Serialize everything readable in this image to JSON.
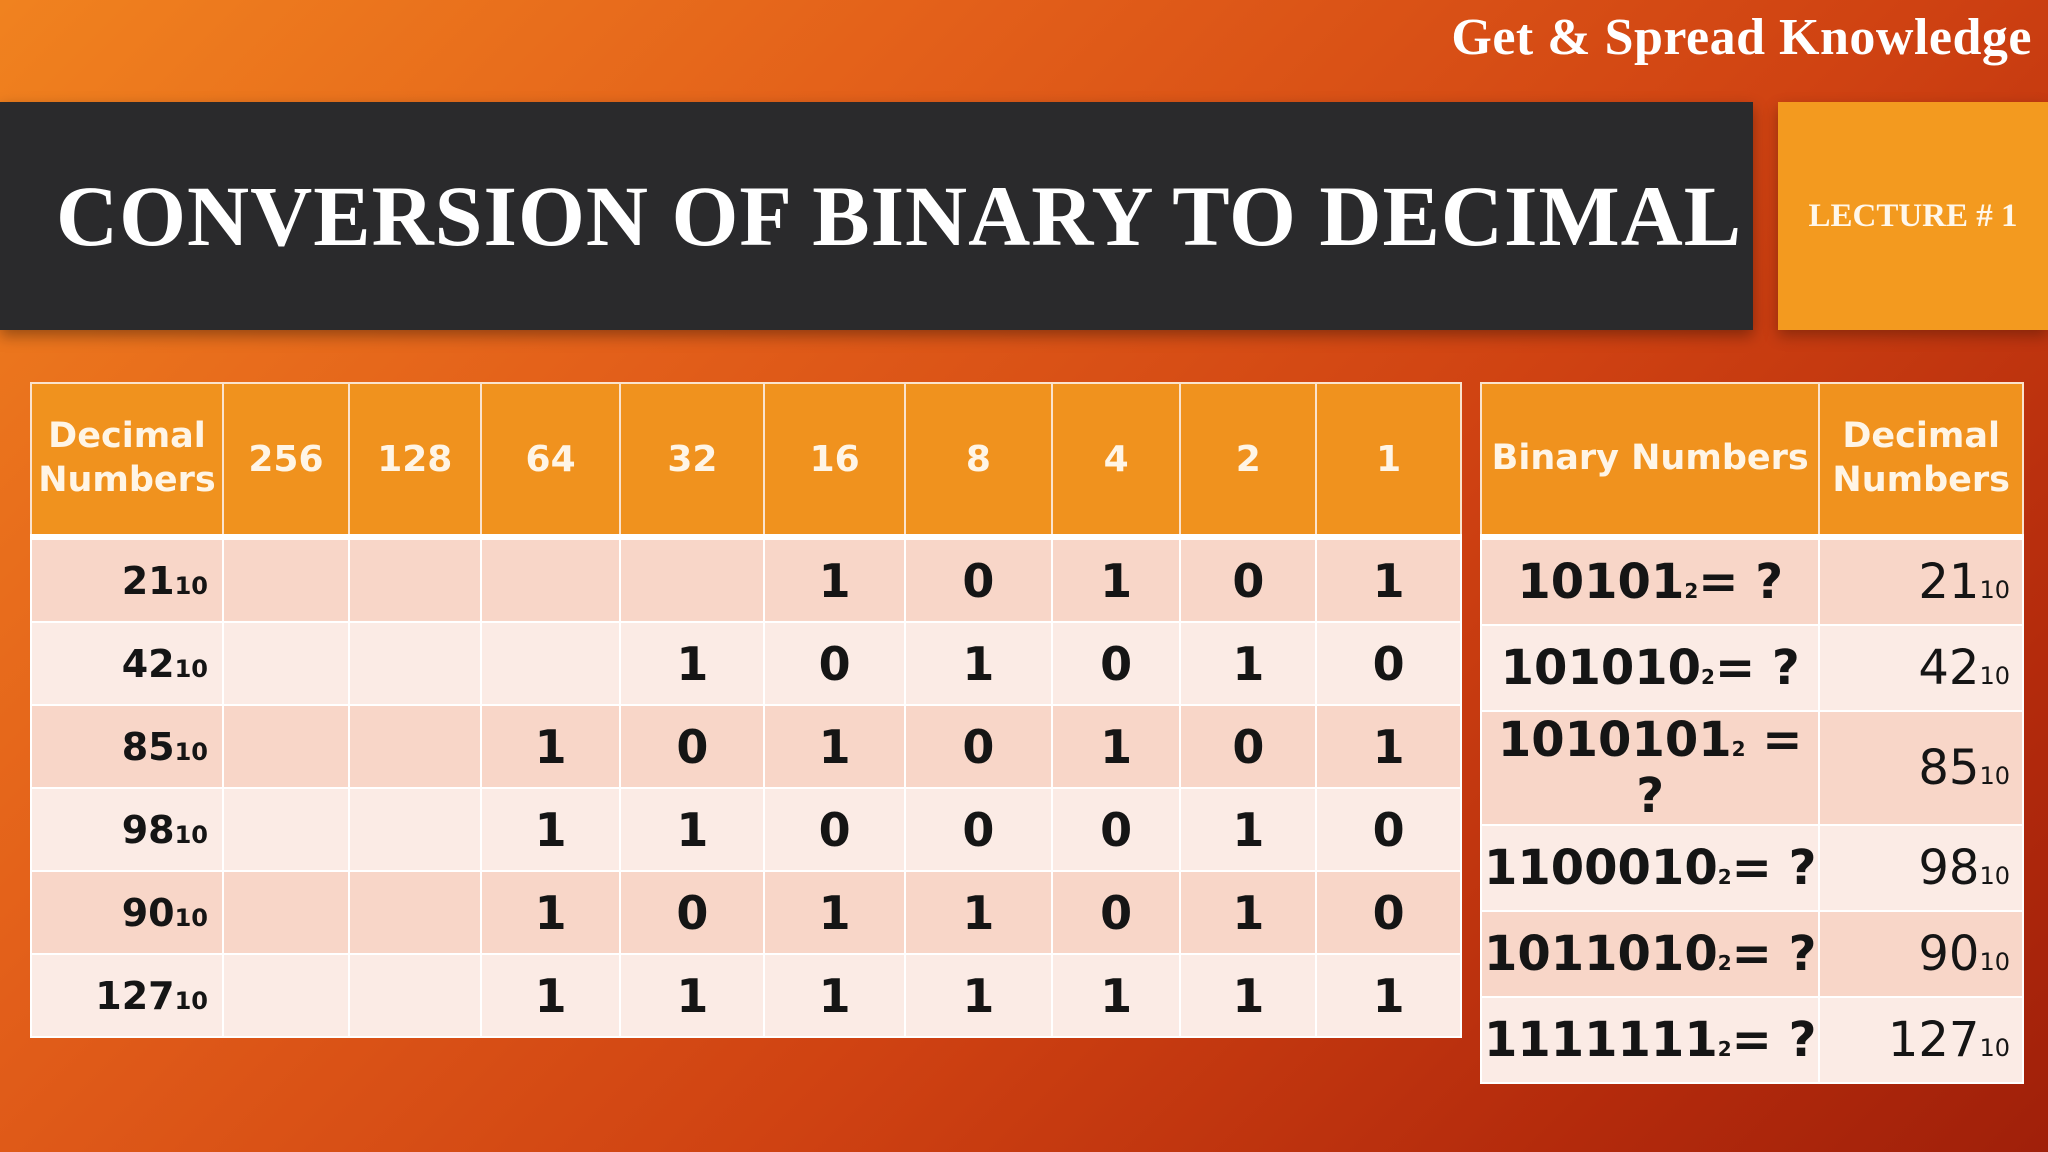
{
  "tagline": "Get & Spread Knowledge",
  "title": "CONVERSION OF BINARY TO DECIMAL",
  "lecture": "LECTURE # 1",
  "place_table": {
    "header_first": "Decimal Numbers",
    "place_values": [
      "256",
      "128",
      "64",
      "32",
      "16",
      "8",
      "4",
      "2",
      "1"
    ],
    "rows": [
      {
        "decimal": "21",
        "base": "10",
        "bits": [
          "",
          "",
          "",
          "",
          "1",
          "0",
          "1",
          "0",
          "1"
        ]
      },
      {
        "decimal": "42",
        "base": "10",
        "bits": [
          "",
          "",
          "",
          "1",
          "0",
          "1",
          "0",
          "1",
          "0"
        ]
      },
      {
        "decimal": "85",
        "base": "10",
        "bits": [
          "",
          "",
          "1",
          "0",
          "1",
          "0",
          "1",
          "0",
          "1"
        ]
      },
      {
        "decimal": "98",
        "base": "10",
        "bits": [
          "",
          "",
          "1",
          "1",
          "0",
          "0",
          "0",
          "1",
          "0"
        ]
      },
      {
        "decimal": "90",
        "base": "10",
        "bits": [
          "",
          "",
          "1",
          "0",
          "1",
          "1",
          "0",
          "1",
          "0"
        ]
      },
      {
        "decimal": "127",
        "base": "10",
        "bits": [
          "",
          "",
          "1",
          "1",
          "1",
          "1",
          "1",
          "1",
          "1"
        ]
      }
    ]
  },
  "answer_table": {
    "header_binary": "Binary Numbers",
    "header_decimal": "Decimal Numbers",
    "rows": [
      {
        "binary": "10101",
        "base": "2",
        "suffix": "= ?",
        "decimal": "21",
        "dec_base": "10"
      },
      {
        "binary": "101010",
        "base": "2",
        "suffix": "= ?",
        "decimal": "42",
        "dec_base": "10"
      },
      {
        "binary": "1010101",
        "base": "2",
        "suffix": " = ?",
        "decimal": "85",
        "dec_base": "10"
      },
      {
        "binary": "1100010",
        "base": "2",
        "suffix": "= ?",
        "decimal": "98",
        "dec_base": "10"
      },
      {
        "binary": "1011010",
        "base": "2",
        "suffix": "= ?",
        "decimal": "90",
        "dec_base": "10"
      },
      {
        "binary": "1111111",
        "base": "2",
        "suffix": "= ?",
        "decimal": "127",
        "dec_base": "10"
      }
    ]
  }
}
